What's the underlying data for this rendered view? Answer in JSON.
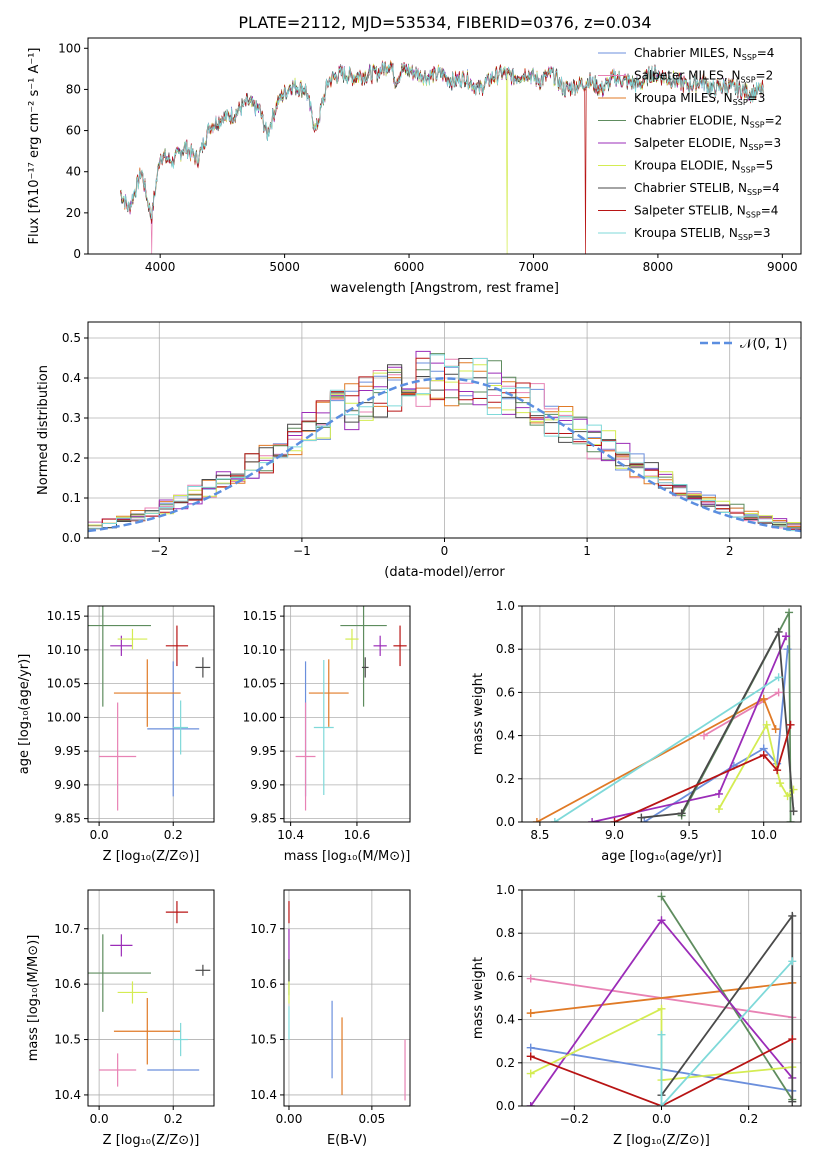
{
  "figure": {
    "title": "PLATE=2112, MJD=53534, FIBERID=0376, z=0.034"
  },
  "models": [
    {
      "name": "Chabrier MILES",
      "nssp": "4",
      "color": "#6b8fdc"
    },
    {
      "name": "Salpeter MILES",
      "nssp": "2",
      "color": "#e882b4"
    },
    {
      "name": "Kroupa MILES",
      "nssp": "3",
      "color": "#e07a26"
    },
    {
      "name": "Chabrier ELODIE",
      "nssp": "2",
      "color": "#5e8c5e"
    },
    {
      "name": "Salpeter ELODIE",
      "nssp": "3",
      "color": "#9b2cb8"
    },
    {
      "name": "Kroupa ELODIE",
      "nssp": "5",
      "color": "#d4ec52"
    },
    {
      "name": "Chabrier STELIB",
      "nssp": "4",
      "color": "#4a4a4a"
    },
    {
      "name": "Salpeter STELIB",
      "nssp": "4",
      "color": "#b81414"
    },
    {
      "name": "Kroupa STELIB",
      "nssp": "3",
      "color": "#7fd9d9"
    }
  ],
  "chart_data": [
    {
      "id": "spectrum",
      "type": "line",
      "xlabel": "wavelength [Angstrom, rest frame]",
      "ylabel": "Flux [fλ10⁻¹⁷ erg cm⁻² s⁻¹ A⁻¹]",
      "xlim": [
        3420,
        9150
      ],
      "ylim": [
        0,
        105
      ],
      "xticks": [
        4000,
        5000,
        6000,
        7000,
        8000,
        9000
      ],
      "yticks": [
        0,
        20,
        40,
        60,
        80,
        100
      ],
      "legend": "top-right",
      "series_x": [
        3680,
        3750,
        3850,
        3930,
        4000,
        4100,
        4200,
        4300,
        4400,
        4500,
        4600,
        4700,
        4800,
        4860,
        4950,
        5050,
        5170,
        5250,
        5350,
        5450,
        5550,
        5650,
        5750,
        5850,
        5890,
        5950,
        6050,
        6150,
        6250,
        6350,
        6450,
        6560,
        6650,
        6750,
        6850,
        6950,
        7050,
        7150,
        7250,
        7350,
        7450,
        7550,
        7650,
        7750,
        7850,
        7950,
        8050,
        8150,
        8250,
        8350,
        8450,
        8550,
        8650,
        8750,
        8850
      ],
      "series_y": [
        30,
        22,
        40,
        18,
        48,
        45,
        52,
        46,
        62,
        66,
        68,
        74,
        70,
        58,
        75,
        82,
        80,
        60,
        84,
        88,
        86,
        87,
        88,
        93,
        84,
        90,
        88,
        86,
        88,
        84,
        86,
        80,
        85,
        88,
        86,
        88,
        84,
        88,
        80,
        82,
        84,
        80,
        86,
        84,
        82,
        88,
        86,
        84,
        82,
        84,
        80,
        82,
        80,
        78,
        80
      ],
      "dropouts": [
        {
          "model": "Salpeter MILES",
          "x": 3930
        },
        {
          "model": "Kroupa ELODIE",
          "x": 6790
        },
        {
          "model": "Salpeter STELIB",
          "x": 7420
        }
      ]
    },
    {
      "id": "residuals",
      "type": "histogram",
      "xlabel": "(data-model)/error",
      "ylabel": "Normed distribution",
      "xlim": [
        -2.5,
        2.5
      ],
      "ylim": [
        0,
        0.54
      ],
      "xticks": [
        -2,
        -1,
        0,
        1,
        2
      ],
      "yticks": [
        0.0,
        0.1,
        0.2,
        0.3,
        0.4,
        0.5
      ],
      "reference_curve": "𝒩(0, 1)",
      "reference_color": "#5b8ee0",
      "bin_width": 0.1
    },
    {
      "id": "age_vs_Z",
      "type": "errorbar",
      "xlabel": "Z [log₁₀(Z/Z⊙)]",
      "ylabel": "age  [log₁₀(age/yr)]",
      "xlim": [
        -0.03,
        0.31
      ],
      "ylim": [
        9.845,
        10.165
      ],
      "xticks": [
        0.0,
        0.2
      ],
      "yticks": [
        9.85,
        9.9,
        9.95,
        10.0,
        10.05,
        10.1,
        10.15
      ],
      "points": [
        {
          "model": "Chabrier MILES",
          "x": 0.2,
          "y": 9.983,
          "xerr": 0.07,
          "yerr": 0.1
        },
        {
          "model": "Salpeter MILES",
          "x": 0.05,
          "y": 9.942,
          "xerr": 0.05,
          "yerr": 0.08
        },
        {
          "model": "Kroupa MILES",
          "x": 0.13,
          "y": 10.036,
          "xerr": 0.09,
          "yerr": 0.05
        },
        {
          "model": "Chabrier ELODIE",
          "x": 0.01,
          "y": 10.136,
          "xerr": 0.13,
          "yerr": 0.12
        },
        {
          "model": "Salpeter ELODIE",
          "x": 0.06,
          "y": 10.106,
          "xerr": 0.03,
          "yerr": 0.015
        },
        {
          "model": "Kroupa ELODIE",
          "x": 0.09,
          "y": 10.116,
          "xerr": 0.04,
          "yerr": 0.015
        },
        {
          "model": "Chabrier STELIB",
          "x": 0.28,
          "y": 10.074,
          "xerr": 0.02,
          "yerr": 0.015
        },
        {
          "model": "Salpeter STELIB",
          "x": 0.21,
          "y": 10.106,
          "xerr": 0.03,
          "yerr": 0.03
        },
        {
          "model": "Kroupa STELIB",
          "x": 0.22,
          "y": 9.985,
          "xerr": 0.02,
          "yerr": 0.04
        }
      ]
    },
    {
      "id": "age_vs_mass",
      "type": "errorbar",
      "xlabel": "mass [log₁₀(M/M⊙)]",
      "ylabel": "",
      "xlim": [
        10.38,
        10.76
      ],
      "ylim": [
        9.845,
        10.165
      ],
      "xticks": [
        10.4,
        10.6
      ],
      "yticks": [
        9.85,
        9.9,
        9.95,
        10.0,
        10.05,
        10.1,
        10.15
      ],
      "points": [
        {
          "model": "Chabrier MILES",
          "x": 10.445,
          "y": 9.983,
          "xerr": 0.0,
          "yerr": 0.1
        },
        {
          "model": "Salpeter MILES",
          "x": 10.445,
          "y": 9.942,
          "xerr": 0.03,
          "yerr": 0.08
        },
        {
          "model": "Kroupa MILES",
          "x": 10.515,
          "y": 10.036,
          "xerr": 0.06,
          "yerr": 0.05
        },
        {
          "model": "Chabrier ELODIE",
          "x": 10.62,
          "y": 10.136,
          "xerr": 0.07,
          "yerr": 0.12
        },
        {
          "model": "Salpeter ELODIE",
          "x": 10.67,
          "y": 10.106,
          "xerr": 0.02,
          "yerr": 0.015
        },
        {
          "model": "Kroupa ELODIE",
          "x": 10.585,
          "y": 10.116,
          "xerr": 0.02,
          "yerr": 0.015
        },
        {
          "model": "Chabrier STELIB",
          "x": 10.625,
          "y": 10.074,
          "xerr": 0.01,
          "yerr": 0.015
        },
        {
          "model": "Salpeter STELIB",
          "x": 10.73,
          "y": 10.106,
          "xerr": 0.02,
          "yerr": 0.03
        },
        {
          "model": "Kroupa STELIB",
          "x": 10.5,
          "y": 9.985,
          "xerr": 0.03,
          "yerr": 0.1
        }
      ]
    },
    {
      "id": "weight_vs_age",
      "type": "line",
      "xlabel": "age  [log₁₀(age/yr)]",
      "ylabel": "mass weight",
      "xlim": [
        8.38,
        10.25
      ],
      "ylim": [
        0,
        1
      ],
      "xticks": [
        8.5,
        9.0,
        9.5,
        10.0
      ],
      "yticks": [
        0.0,
        0.2,
        0.4,
        0.6,
        0.8,
        1.0
      ],
      "series": [
        {
          "model": "Chabrier MILES",
          "x": [
            9.2,
            9.8,
            10.0,
            10.09,
            10.16
          ],
          "y": [
            0.0,
            0.26,
            0.34,
            0.27,
            0.8
          ]
        },
        {
          "model": "Salpeter MILES",
          "x": [
            9.6,
            10.1
          ],
          "y": [
            0.4,
            0.6
          ]
        },
        {
          "model": "Kroupa MILES",
          "x": [
            8.48,
            10.0,
            10.08
          ],
          "y": [
            0.0,
            0.57,
            0.43
          ]
        },
        {
          "model": "Chabrier ELODIE",
          "x": [
            9.45,
            10.17,
            10.18
          ],
          "y": [
            0.03,
            0.97,
            0.0
          ]
        },
        {
          "model": "Salpeter ELODIE",
          "x": [
            8.85,
            9.7,
            10.15
          ],
          "y": [
            0.0,
            0.13,
            0.86
          ]
        },
        {
          "model": "Kroupa ELODIE",
          "x": [
            9.7,
            10.02,
            10.11,
            10.16,
            10.2
          ],
          "y": [
            0.06,
            0.45,
            0.18,
            0.12,
            0.15
          ]
        },
        {
          "model": "Chabrier STELIB",
          "x": [
            9.18,
            9.45,
            10.1,
            10.2
          ],
          "y": [
            0.02,
            0.04,
            0.88,
            0.05
          ]
        },
        {
          "model": "Salpeter STELIB",
          "x": [
            9.0,
            10.0,
            10.09,
            10.18
          ],
          "y": [
            0.0,
            0.31,
            0.24,
            0.45
          ]
        },
        {
          "model": "Kroupa STELIB",
          "x": [
            8.6,
            10.1
          ],
          "y": [
            0.0,
            0.67
          ]
        }
      ]
    },
    {
      "id": "mass_vs_Z",
      "type": "errorbar",
      "xlabel": "Z [log₁₀(Z/Z⊙)]",
      "ylabel": "mass [log₁₀(M/M⊙)]",
      "xlim": [
        -0.03,
        0.31
      ],
      "ylim": [
        10.38,
        10.77
      ],
      "xticks": [
        0.0,
        0.2
      ],
      "yticks": [
        10.4,
        10.5,
        10.6,
        10.7
      ],
      "points": [
        {
          "model": "Chabrier MILES",
          "x": 0.2,
          "y": 10.445,
          "xerr": 0.07,
          "yerr": 0.0
        },
        {
          "model": "Salpeter MILES",
          "x": 0.05,
          "y": 10.445,
          "xerr": 0.05,
          "yerr": 0.03
        },
        {
          "model": "Kroupa MILES",
          "x": 0.13,
          "y": 10.515,
          "xerr": 0.09,
          "yerr": 0.06
        },
        {
          "model": "Chabrier ELODIE",
          "x": 0.01,
          "y": 10.62,
          "xerr": 0.13,
          "yerr": 0.07
        },
        {
          "model": "Salpeter ELODIE",
          "x": 0.06,
          "y": 10.67,
          "xerr": 0.03,
          "yerr": 0.02
        },
        {
          "model": "Kroupa ELODIE",
          "x": 0.09,
          "y": 10.585,
          "xerr": 0.04,
          "yerr": 0.02
        },
        {
          "model": "Chabrier STELIB",
          "x": 0.28,
          "y": 10.625,
          "xerr": 0.02,
          "yerr": 0.01
        },
        {
          "model": "Salpeter STELIB",
          "x": 0.21,
          "y": 10.73,
          "xerr": 0.03,
          "yerr": 0.02
        },
        {
          "model": "Kroupa STELIB",
          "x": 0.22,
          "y": 10.5,
          "xerr": 0.02,
          "yerr": 0.03
        }
      ]
    },
    {
      "id": "mass_vs_EBV",
      "type": "errorbar",
      "xlabel": "E(B-V)",
      "ylabel": "",
      "xlim": [
        -0.003,
        0.073
      ],
      "ylim": [
        10.38,
        10.77
      ],
      "xticks": [
        0.0,
        0.05
      ],
      "yticks": [
        10.4,
        10.5,
        10.6,
        10.7
      ],
      "points": [
        {
          "model": "Chabrier MILES",
          "x": 0.026,
          "y": 10.5,
          "xerr": 0.0,
          "yerr": 0.07
        },
        {
          "model": "Salpeter MILES",
          "x": 0.07,
          "y": 10.445,
          "xerr": 0.0,
          "yerr": 0.055
        },
        {
          "model": "Kroupa MILES",
          "x": 0.032,
          "y": 10.47,
          "xerr": 0.0,
          "yerr": 0.07
        },
        {
          "model": "Chabrier ELODIE",
          "x": 0.0,
          "y": 10.61,
          "xerr": 0.0,
          "yerr": 0.03
        },
        {
          "model": "Salpeter ELODIE",
          "x": 0.0,
          "y": 10.67,
          "xerr": 0.0,
          "yerr": 0.03
        },
        {
          "model": "Kroupa ELODIE",
          "x": 0.0,
          "y": 10.585,
          "xerr": 0.0,
          "yerr": 0.02
        },
        {
          "model": "Chabrier STELIB",
          "x": 0.0,
          "y": 10.625,
          "xerr": 0.0,
          "yerr": 0.02
        },
        {
          "model": "Salpeter STELIB",
          "x": 0.0,
          "y": 10.73,
          "xerr": 0.0,
          "yerr": 0.02
        },
        {
          "model": "Kroupa STELIB",
          "x": 0.0,
          "y": 10.53,
          "xerr": 0.0,
          "yerr": 0.03
        }
      ]
    },
    {
      "id": "weight_vs_Z",
      "type": "line",
      "xlabel": "Z [log₁₀(Z/Z⊙)]",
      "ylabel": "mass weight",
      "xlim": [
        -0.32,
        0.32
      ],
      "ylim": [
        0,
        1
      ],
      "xticks": [
        -0.2,
        0.0,
        0.2
      ],
      "yticks": [
        0.0,
        0.2,
        0.4,
        0.6,
        0.8,
        1.0
      ],
      "series": [
        {
          "model": "Chabrier MILES",
          "x": [
            -0.3,
            0.3
          ],
          "y": [
            0.27,
            0.07
          ]
        },
        {
          "model": "Salpeter MILES",
          "x": [
            -0.3,
            0.3
          ],
          "y": [
            0.59,
            0.41
          ]
        },
        {
          "model": "Kroupa MILES",
          "x": [
            -0.3,
            0.3
          ],
          "y": [
            0.43,
            0.57
          ]
        },
        {
          "model": "Chabrier ELODIE",
          "x": [
            0.0,
            0.3
          ],
          "y": [
            0.97,
            0.03
          ]
        },
        {
          "model": "Salpeter ELODIE",
          "x": [
            -0.3,
            0.0,
            0.3
          ],
          "y": [
            0.0,
            0.86,
            0.13
          ]
        },
        {
          "model": "Kroupa ELODIE",
          "x": [
            -0.3,
            0.0,
            0.0,
            0.3
          ],
          "y": [
            0.15,
            0.45,
            0.12,
            0.18
          ]
        },
        {
          "model": "Chabrier STELIB",
          "x": [
            0.0,
            0.3,
            0.3
          ],
          "y": [
            0.05,
            0.88,
            0.02
          ]
        },
        {
          "model": "Salpeter STELIB",
          "x": [
            -0.3,
            0.0,
            0.3
          ],
          "y": [
            0.23,
            0.0,
            0.31
          ]
        },
        {
          "model": "Kroupa STELIB",
          "x": [
            0.0,
            0.0,
            0.3
          ],
          "y": [
            0.33,
            0.0,
            0.67
          ]
        }
      ]
    }
  ]
}
